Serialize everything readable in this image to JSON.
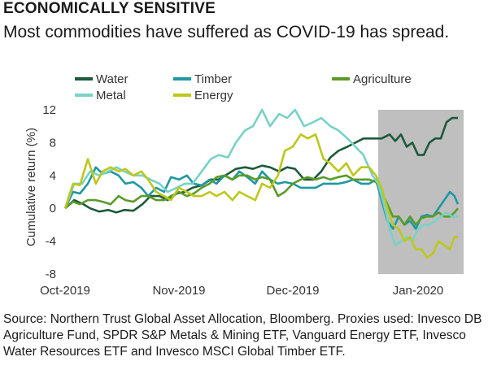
{
  "title": "ECONOMICALLY SENSITIVE",
  "subtitle": "Most commodities have suffered as COVID-19 has spread.",
  "source": "Source: Northern Trust Global Asset Allocation, Bloomberg. Proxies used: Invesco DB Agriculture Fund, SPDR S&P Metals & Mining ETF, Vanguard Energy ETF, Invesco Water Resources ETF and Invesco MSCI Global Timber ETF.",
  "chart_data": {
    "type": "line",
    "ylabel": "Cumulative return (%)",
    "ylim": [
      -8,
      12
    ],
    "yticks": [
      12,
      8,
      4,
      0,
      -4,
      -8
    ],
    "xlim": [
      0,
      35
    ],
    "xticks": [
      {
        "label": "Oct-2019",
        "x": 0
      },
      {
        "label": "Nov-2019",
        "x": 10
      },
      {
        "label": "Dec-2019",
        "x": 20
      },
      {
        "label": "Jan-2020",
        "x": 31
      }
    ],
    "shaded_region": {
      "x_start": 27.5,
      "x_end": 35,
      "color": "#bfbfbf"
    },
    "legend_position": "top",
    "series": [
      {
        "name": "Water",
        "color": "#1d5a3c",
        "points": [
          [
            0,
            0
          ],
          [
            0.8,
            1.0
          ],
          [
            1.6,
            0.5
          ],
          [
            2.2,
            0
          ],
          [
            3,
            -0.4
          ],
          [
            3.8,
            -0.2
          ],
          [
            4.5,
            -0.5
          ],
          [
            5.2,
            -0.2
          ],
          [
            6,
            -0.3
          ],
          [
            6.8,
            0.5
          ],
          [
            7.5,
            1.5
          ],
          [
            8.3,
            1.5
          ],
          [
            9,
            1.0
          ],
          [
            9.8,
            1.8
          ],
          [
            10.5,
            2.0
          ],
          [
            11.2,
            2.5
          ],
          [
            12,
            2.8
          ],
          [
            12.8,
            3.5
          ],
          [
            13.5,
            3.5
          ],
          [
            14.3,
            4.2
          ],
          [
            15,
            4.8
          ],
          [
            15.8,
            5.0
          ],
          [
            16.5,
            4.8
          ],
          [
            17.3,
            5.2
          ],
          [
            18,
            5.0
          ],
          [
            18.8,
            4.5
          ],
          [
            19.5,
            5.0
          ],
          [
            20.2,
            4.8
          ],
          [
            21,
            3.5
          ],
          [
            21.8,
            3.5
          ],
          [
            22.5,
            4.5
          ],
          [
            23.3,
            6.2
          ],
          [
            24,
            7.0
          ],
          [
            24.8,
            7.5
          ],
          [
            25.5,
            8.0
          ],
          [
            26.2,
            8.5
          ],
          [
            27,
            8.5
          ],
          [
            27.8,
            8.5
          ],
          [
            28.5,
            9.0
          ],
          [
            29,
            8.2
          ],
          [
            29.5,
            9.0
          ],
          [
            30,
            7.5
          ],
          [
            30.5,
            8.0
          ],
          [
            31,
            6.5
          ],
          [
            31.5,
            6.5
          ],
          [
            32,
            8.0
          ],
          [
            32.5,
            8.5
          ],
          [
            33,
            8.5
          ],
          [
            33.5,
            10.5
          ],
          [
            34,
            11.0
          ],
          [
            34.5,
            11.0
          ]
        ]
      },
      {
        "name": "Timber",
        "color": "#1f98a3",
        "points": [
          [
            0,
            0
          ],
          [
            0.7,
            2.0
          ],
          [
            1.3,
            1.8
          ],
          [
            2,
            3.0
          ],
          [
            2.7,
            5.0
          ],
          [
            3.3,
            4.2
          ],
          [
            4,
            4.5
          ],
          [
            4.7,
            4.0
          ],
          [
            5.3,
            3.0
          ],
          [
            6,
            3.2
          ],
          [
            6.7,
            2.5
          ],
          [
            7.3,
            1.5
          ],
          [
            8,
            2.5
          ],
          [
            8.7,
            2.0
          ],
          [
            9.3,
            3.8
          ],
          [
            10,
            3.5
          ],
          [
            10.7,
            4.0
          ],
          [
            11.3,
            3.0
          ],
          [
            12,
            2.8
          ],
          [
            12.7,
            3.5
          ],
          [
            13.3,
            3.0
          ],
          [
            14,
            4.0
          ],
          [
            14.7,
            3.5
          ],
          [
            15.3,
            4.5
          ],
          [
            16,
            3.8
          ],
          [
            16.7,
            3.0
          ],
          [
            17.3,
            4.5
          ],
          [
            18,
            3.5
          ],
          [
            18.7,
            3.0
          ],
          [
            19.3,
            3.2
          ],
          [
            20,
            3.0
          ],
          [
            20.7,
            2.5
          ],
          [
            21.3,
            2.5
          ],
          [
            22,
            2.5
          ],
          [
            22.7,
            3.0
          ],
          [
            23.3,
            3.0
          ],
          [
            24,
            3.0
          ],
          [
            24.7,
            3.2
          ],
          [
            25.3,
            3.5
          ],
          [
            26,
            3.0
          ],
          [
            26.7,
            3.0
          ],
          [
            27.3,
            3.5
          ],
          [
            27.8,
            1.0
          ],
          [
            28.3,
            -1.5
          ],
          [
            28.8,
            -2.5
          ],
          [
            29.3,
            -1.0
          ],
          [
            29.8,
            -2.0
          ],
          [
            30.3,
            -1.5
          ],
          [
            30.8,
            -2.5
          ],
          [
            31.3,
            -1.0
          ],
          [
            31.8,
            -0.8
          ],
          [
            32.3,
            -1.0
          ],
          [
            32.8,
            0
          ],
          [
            33.3,
            1.0
          ],
          [
            33.8,
            2.0
          ],
          [
            34.2,
            1.5
          ],
          [
            34.5,
            0.5
          ]
        ]
      },
      {
        "name": "Agriculture",
        "color": "#5a9a2a",
        "points": [
          [
            0,
            0
          ],
          [
            0.7,
            0.8
          ],
          [
            1.3,
            0.5
          ],
          [
            2,
            1.0
          ],
          [
            2.7,
            1.0
          ],
          [
            3.3,
            0.8
          ],
          [
            4,
            0.5
          ],
          [
            4.7,
            1.5
          ],
          [
            5.3,
            1.0
          ],
          [
            6,
            0.8
          ],
          [
            6.7,
            1.5
          ],
          [
            7.3,
            1.5
          ],
          [
            8,
            1.0
          ],
          [
            8.7,
            1.0
          ],
          [
            9.3,
            1.5
          ],
          [
            10,
            2.0
          ],
          [
            10.7,
            1.5
          ],
          [
            11.3,
            1.8
          ],
          [
            12,
            2.5
          ],
          [
            12.7,
            3.0
          ],
          [
            13.3,
            3.8
          ],
          [
            14,
            4.0
          ],
          [
            14.7,
            3.5
          ],
          [
            15.3,
            4.0
          ],
          [
            16,
            4.0
          ],
          [
            16.7,
            3.5
          ],
          [
            17.3,
            3.8
          ],
          [
            18,
            3.5
          ],
          [
            18.7,
            1.5
          ],
          [
            19.3,
            2.0
          ],
          [
            20,
            3.0
          ],
          [
            20.7,
            3.5
          ],
          [
            21.3,
            3.8
          ],
          [
            22,
            3.5
          ],
          [
            22.7,
            3.8
          ],
          [
            23.3,
            3.5
          ],
          [
            24,
            3.8
          ],
          [
            24.7,
            4.0
          ],
          [
            25.3,
            3.5
          ],
          [
            26,
            3.5
          ],
          [
            26.7,
            3.5
          ],
          [
            27.3,
            3.2
          ],
          [
            27.8,
            2.0
          ],
          [
            28.3,
            0.5
          ],
          [
            28.8,
            -1.0
          ],
          [
            29.3,
            -1.0
          ],
          [
            29.8,
            -2.0
          ],
          [
            30.3,
            -1.0
          ],
          [
            30.8,
            -2.0
          ],
          [
            31.3,
            -1.2
          ],
          [
            31.8,
            -1.0
          ],
          [
            32.3,
            -1.0
          ],
          [
            32.8,
            -0.5
          ],
          [
            33.3,
            -1.0
          ],
          [
            33.8,
            -1.0
          ],
          [
            34.2,
            -0.5
          ],
          [
            34.5,
            0
          ]
        ]
      },
      {
        "name": "Metal",
        "color": "#78d2c6",
        "points": [
          [
            0,
            0
          ],
          [
            0.8,
            3.0
          ],
          [
            1.5,
            3.0
          ],
          [
            2.2,
            4.5
          ],
          [
            3,
            4.0
          ],
          [
            3.8,
            4.5
          ],
          [
            4.5,
            5.0
          ],
          [
            5.2,
            4.5
          ],
          [
            6,
            4.0
          ],
          [
            6.8,
            4.0
          ],
          [
            7.5,
            3.5
          ],
          [
            8.3,
            3.0
          ],
          [
            9,
            2.0
          ],
          [
            9.8,
            2.5
          ],
          [
            10.5,
            3.0
          ],
          [
            11.2,
            3.0
          ],
          [
            12,
            4.5
          ],
          [
            12.8,
            6.0
          ],
          [
            13.5,
            6.5
          ],
          [
            14.3,
            6.2
          ],
          [
            15,
            8.0
          ],
          [
            15.8,
            9.5
          ],
          [
            16.5,
            10.0
          ],
          [
            17.3,
            12.0
          ],
          [
            18,
            10.0
          ],
          [
            18.8,
            11.5
          ],
          [
            19.5,
            11.0
          ],
          [
            20.2,
            12.0
          ],
          [
            21,
            10.0
          ],
          [
            21.8,
            10.5
          ],
          [
            22.5,
            11.0
          ],
          [
            23.3,
            10.0
          ],
          [
            24,
            9.5
          ],
          [
            24.8,
            8.5
          ],
          [
            25.5,
            7.5
          ],
          [
            26.2,
            6.5
          ],
          [
            27,
            4.0
          ],
          [
            27.5,
            3.0
          ],
          [
            28,
            0.5
          ],
          [
            28.5,
            -2.5
          ],
          [
            29,
            -4.5
          ],
          [
            29.5,
            -4.0
          ],
          [
            30,
            -3.5
          ],
          [
            30.5,
            -4.0
          ],
          [
            31,
            -2.5
          ],
          [
            31.5,
            -2.0
          ],
          [
            32,
            -2.0
          ],
          [
            32.5,
            -1.5
          ],
          [
            33,
            -1.0
          ],
          [
            33.5,
            -0.5
          ],
          [
            34,
            -1.0
          ],
          [
            34.5,
            -1.0
          ]
        ]
      },
      {
        "name": "Energy",
        "color": "#bcc81c",
        "points": [
          [
            0,
            0
          ],
          [
            0.7,
            3.0
          ],
          [
            1.3,
            2.8
          ],
          [
            2,
            6.0
          ],
          [
            2.7,
            3.0
          ],
          [
            3.3,
            4.5
          ],
          [
            4,
            5.0
          ],
          [
            4.7,
            4.5
          ],
          [
            5.3,
            4.8
          ],
          [
            6,
            4.0
          ],
          [
            6.7,
            4.5
          ],
          [
            7.3,
            3.5
          ],
          [
            8,
            2.0
          ],
          [
            8.7,
            1.5
          ],
          [
            9.3,
            1.0
          ],
          [
            10,
            2.5
          ],
          [
            10.7,
            2.0
          ],
          [
            11.3,
            1.5
          ],
          [
            12,
            1.5
          ],
          [
            12.7,
            2.0
          ],
          [
            13.3,
            1.5
          ],
          [
            14,
            2.0
          ],
          [
            14.7,
            1.0
          ],
          [
            15.3,
            2.0
          ],
          [
            16,
            1.5
          ],
          [
            16.7,
            1.0
          ],
          [
            17.3,
            3.0
          ],
          [
            18,
            2.5
          ],
          [
            18.7,
            4.0
          ],
          [
            19.3,
            7.0
          ],
          [
            20,
            7.5
          ],
          [
            20.7,
            9.0
          ],
          [
            21.3,
            8.5
          ],
          [
            22,
            9.0
          ],
          [
            22.7,
            6.0
          ],
          [
            23.3,
            5.5
          ],
          [
            24,
            4.5
          ],
          [
            24.7,
            5.5
          ],
          [
            25.3,
            4.0
          ],
          [
            26,
            5.0
          ],
          [
            26.7,
            5.0
          ],
          [
            27.3,
            4.0
          ],
          [
            27.8,
            2.5
          ],
          [
            28.3,
            0
          ],
          [
            28.8,
            -2.0
          ],
          [
            29.3,
            -2.5
          ],
          [
            29.8,
            -4.0
          ],
          [
            30.3,
            -3.5
          ],
          [
            30.8,
            -5.0
          ],
          [
            31.3,
            -5.0
          ],
          [
            31.8,
            -6.0
          ],
          [
            32.3,
            -5.5
          ],
          [
            32.8,
            -4.0
          ],
          [
            33.3,
            -4.5
          ],
          [
            33.8,
            -5.0
          ],
          [
            34.2,
            -3.5
          ],
          [
            34.5,
            -3.5
          ]
        ]
      }
    ]
  }
}
